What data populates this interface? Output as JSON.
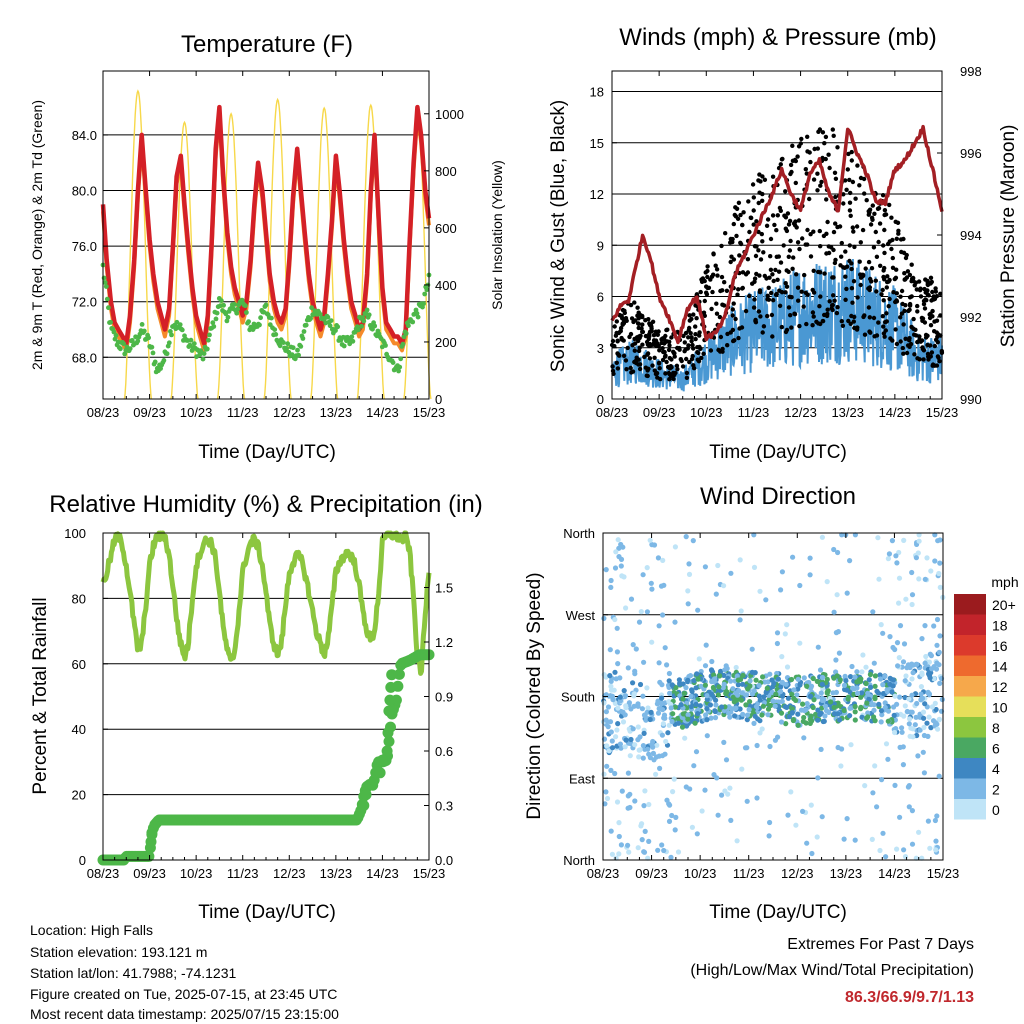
{
  "panels": {
    "temperature": {
      "title": "Temperature (F)",
      "ylabel": "2m & 9m T (Red, Orange) & 2m Td (Green)",
      "ylabel_right": "Solar Insolation (Yellow)",
      "xlabel": "Time (Day/UTC)"
    },
    "winds": {
      "title": "Winds (mph) & Pressure (mb)",
      "ylabel": "Sonic Wind & Gust (Blue, Black)",
      "ylabel_right": "Station Pressure (Maroon)",
      "xlabel": "Time (Day/UTC)"
    },
    "humidity": {
      "title": "Relative Humidity (%) & Precipitation (in)",
      "ylabel": "Percent & Total Rainfall",
      "xlabel": "Time (Day/UTC)"
    },
    "direction": {
      "title": "Wind Direction",
      "ylabel": "Direction (Colored By Speed)",
      "xlabel": "Time (Day/UTC)",
      "legend_title": "mph"
    }
  },
  "info": {
    "location": "Location: High Falls",
    "elevation": "Station elevation: 193.121 m",
    "latlon": "Station lat/lon: 41.7988; -74.1231",
    "created": "Figure created on Tue, 2025-07-15, at 23:45 UTC",
    "recent": "Most recent data timestamp: 2025/07/15 23:15:00"
  },
  "extremes": {
    "title": "Extremes For Past 7 Days",
    "subtitle": "(High/Low/Max Wind/Total Precipitation)",
    "values": "86.3/66.9/9.7/1.13"
  },
  "colors": {
    "temp_2m": "#d42027",
    "temp_9m": "#f58a2a",
    "dewpoint": "#4db748",
    "solar": "#f7d84a",
    "gust": "#000000",
    "wind": "#4a98d3",
    "pressure": "#a31f24",
    "rh": "#8cc63f",
    "precip": "#4db748"
  },
  "chart_data": [
    {
      "type": "line",
      "title": "Temperature (F)",
      "xlabel": "Time (Day/UTC)",
      "ylabel": "2m & 9m T (Red, Orange) & 2m Td (Green)",
      "ylabel_right": "Solar Insolation (Yellow)",
      "x_ticks": [
        "08/23",
        "09/23",
        "10/23",
        "11/23",
        "12/23",
        "13/23",
        "14/23",
        "15/23"
      ],
      "y_ticks": [
        "68.0",
        "72.0",
        "76.0",
        "80.0",
        "84.0"
      ],
      "y_right_ticks": [
        "0",
        "200",
        "400",
        "600",
        "800",
        "1000"
      ],
      "xlim": [
        0,
        7
      ],
      "ylim": [
        65.0,
        88.6
      ],
      "ylim_right": [
        0,
        1150
      ],
      "grid": true,
      "series": [
        {
          "key": "temp_2m",
          "x": [
            0,
            0.08,
            0.17,
            0.25,
            0.33,
            0.42,
            0.5,
            0.58,
            0.67,
            0.75,
            0.83,
            0.92,
            1,
            1.08,
            1.17,
            1.25,
            1.33,
            1.42,
            1.5,
            1.58,
            1.67,
            1.75,
            1.83,
            1.92,
            2,
            2.08,
            2.17,
            2.25,
            2.33,
            2.42,
            2.5,
            2.58,
            2.67,
            2.75,
            2.83,
            2.92,
            3,
            3.08,
            3.17,
            3.25,
            3.33,
            3.42,
            3.5,
            3.58,
            3.67,
            3.75,
            3.83,
            3.92,
            4,
            4.08,
            4.17,
            4.25,
            4.33,
            4.42,
            4.5,
            4.58,
            4.67,
            4.75,
            4.83,
            4.92,
            5,
            5.08,
            5.17,
            5.25,
            5.33,
            5.42,
            5.5,
            5.58,
            5.67,
            5.75,
            5.83,
            5.92,
            6,
            6.08,
            6.17,
            6.25,
            6.33,
            6.42,
            6.5,
            6.58,
            6.67,
            6.75,
            6.83,
            6.92,
            7
          ],
          "y": [
            79.0,
            75.0,
            72.0,
            70.5,
            70.0,
            69.5,
            69.0,
            71.0,
            75.0,
            80.0,
            84.0,
            80.0,
            76.5,
            74.0,
            72.0,
            71.0,
            70.0,
            71.5,
            76.0,
            81.0,
            82.5,
            79.0,
            76.0,
            73.0,
            71.0,
            70.0,
            69.0,
            71.0,
            76.0,
            83.0,
            86.0,
            81.0,
            77.0,
            74.5,
            73.0,
            72.0,
            71.0,
            72.0,
            75.0,
            79.0,
            82.0,
            80.0,
            77.0,
            74.0,
            72.0,
            71.0,
            70.5,
            71.5,
            75.0,
            79.5,
            83.0,
            80.0,
            77.0,
            74.0,
            72.0,
            71.0,
            70.0,
            71.0,
            74.0,
            78.0,
            82.5,
            80.0,
            76.5,
            74.0,
            72.0,
            71.0,
            70.0,
            70.5,
            74.0,
            80.0,
            84.0,
            78.0,
            73.0,
            70.5,
            70.0,
            69.5,
            69.5,
            69.0,
            70.0,
            76.0,
            82.0,
            86.0,
            84.0,
            80.0,
            78.0
          ]
        },
        {
          "key": "dewpoint",
          "x": [
            0,
            0.17,
            0.33,
            0.5,
            0.67,
            0.83,
            1,
            1.17,
            1.33,
            1.5,
            1.67,
            1.83,
            2,
            2.17,
            2.33,
            2.5,
            2.67,
            2.83,
            3,
            3.17,
            3.33,
            3.5,
            3.67,
            3.83,
            4,
            4.17,
            4.33,
            4.5,
            4.67,
            4.83,
            5,
            5.17,
            5.33,
            5.5,
            5.67,
            5.83,
            6,
            6.17,
            6.33,
            6.5,
            6.67,
            6.83,
            7
          ],
          "y": [
            74.5,
            70.0,
            69.0,
            68.5,
            69.0,
            70.0,
            69.0,
            67.0,
            68.0,
            70.5,
            70.0,
            69.0,
            68.5,
            68.0,
            70.0,
            72.0,
            71.0,
            71.5,
            72.0,
            70.0,
            70.5,
            71.5,
            70.0,
            69.0,
            68.5,
            68.0,
            70.0,
            71.5,
            71.0,
            70.5,
            70.0,
            69.0,
            69.0,
            70.5,
            71.0,
            70.0,
            69.0,
            68.0,
            67.0,
            70.0,
            71.0,
            71.5,
            73.5
          ]
        },
        {
          "key": "solar",
          "noon_peaks": [
            1080,
            970,
            1000,
            1050,
            1020,
            1030,
            1010
          ],
          "noon_x": [
            0.75,
            1.75,
            2.75,
            3.75,
            4.75,
            5.75,
            6.75
          ]
        }
      ]
    },
    {
      "type": "scatter",
      "title": "Winds (mph) & Pressure (mb)",
      "xlabel": "Time (Day/UTC)",
      "ylabel": "Sonic Wind & Gust (Blue, Black)",
      "ylabel_right": "Station Pressure (Maroon)",
      "x_ticks": [
        "08/23",
        "09/23",
        "10/23",
        "11/23",
        "12/23",
        "13/23",
        "14/23",
        "15/23"
      ],
      "y_ticks": [
        "0",
        "3",
        "6",
        "9",
        "12",
        "15",
        "18"
      ],
      "y_right_ticks": [
        "990",
        "992",
        "994",
        "996",
        "998"
      ],
      "xlim": [
        0,
        7
      ],
      "ylim": [
        0,
        19.2
      ],
      "ylim_right": [
        990,
        998
      ],
      "grid": true,
      "series": [
        {
          "key": "wind_env",
          "x": [
            0,
            0.5,
            1,
            1.5,
            2,
            2.5,
            3,
            3.5,
            4,
            4.5,
            5,
            5.5,
            6,
            6.5,
            7
          ],
          "y": [
            1.8,
            2.4,
            1.6,
            1.2,
            2.5,
            3.6,
            4.3,
            4.6,
            5.4,
            5.6,
            5.8,
            5.2,
            4.4,
            2.6,
            2.5
          ]
        },
        {
          "key": "gust_env",
          "x": [
            0,
            0.5,
            1,
            1.5,
            2,
            2.5,
            3,
            3.5,
            4,
            4.5,
            5,
            5.5,
            6,
            6.5,
            7
          ],
          "y": [
            4.0,
            4.5,
            3.2,
            3.0,
            6.0,
            8.5,
            10.0,
            10.5,
            12.0,
            12.5,
            11.5,
            10.0,
            8.5,
            5.5,
            5.5
          ]
        },
        {
          "key": "pressure",
          "x": [
            0,
            0.2,
            0.35,
            0.5,
            0.65,
            0.8,
            1,
            1.2,
            1.4,
            1.6,
            1.8,
            2,
            2.2,
            2.4,
            2.6,
            2.8,
            3,
            3.2,
            3.4,
            3.6,
            3.8,
            4,
            4.2,
            4.4,
            4.6,
            4.8,
            5,
            5.2,
            5.4,
            5.6,
            5.8,
            6,
            6.2,
            6.4,
            6.6,
            6.8,
            7
          ],
          "y": [
            991.9,
            992.3,
            992.4,
            993.2,
            994.0,
            993.5,
            992.5,
            992.0,
            991.4,
            992.2,
            992.5,
            991.5,
            991.6,
            992.0,
            993.0,
            993.5,
            994.0,
            994.5,
            995.0,
            995.6,
            995.0,
            994.6,
            995.5,
            995.8,
            995.0,
            994.6,
            996.6,
            996.0,
            995.5,
            994.8,
            994.8,
            995.6,
            995.8,
            996.2,
            996.6,
            995.6,
            994.6
          ]
        }
      ]
    },
    {
      "type": "line",
      "title": "Relative Humidity (%) & Precipitation (in)",
      "xlabel": "Time (Day/UTC)",
      "ylabel": "Percent & Total Rainfall",
      "x_ticks": [
        "08/23",
        "09/23",
        "10/23",
        "11/23",
        "12/23",
        "13/23",
        "14/23",
        "15/23"
      ],
      "y_ticks": [
        "0",
        "20",
        "40",
        "60",
        "80",
        "100"
      ],
      "y_right_ticks": [
        "0.0",
        "0.3",
        "0.6",
        "0.9",
        "1.2",
        "1.5"
      ],
      "xlim": [
        0,
        7
      ],
      "ylim": [
        0,
        100
      ],
      "ylim_right": [
        0,
        1.8
      ],
      "grid": true,
      "series": [
        {
          "key": "rh",
          "x": [
            0,
            0.08,
            0.17,
            0.25,
            0.33,
            0.42,
            0.5,
            0.58,
            0.67,
            0.75,
            0.83,
            0.92,
            1,
            1.08,
            1.17,
            1.25,
            1.33,
            1.42,
            1.5,
            1.58,
            1.67,
            1.75,
            1.83,
            1.92,
            2,
            2.08,
            2.17,
            2.25,
            2.33,
            2.42,
            2.5,
            2.58,
            2.67,
            2.75,
            2.83,
            2.92,
            3,
            3.08,
            3.17,
            3.25,
            3.33,
            3.42,
            3.5,
            3.58,
            3.67,
            3.75,
            3.83,
            3.92,
            4,
            4.08,
            4.17,
            4.25,
            4.33,
            4.42,
            4.5,
            4.58,
            4.67,
            4.75,
            4.83,
            4.92,
            5,
            5.08,
            5.17,
            5.25,
            5.33,
            5.42,
            5.5,
            5.58,
            5.67,
            5.75,
            5.83,
            5.92,
            6,
            6.08,
            6.17,
            6.25,
            6.33,
            6.42,
            6.5,
            6.58,
            6.67,
            6.75,
            6.83,
            6.92,
            7
          ],
          "y": [
            84,
            88,
            93,
            98,
            99,
            96,
            90,
            82,
            72,
            64,
            66,
            78,
            90,
            96,
            99,
            99,
            99,
            93,
            84,
            74,
            66,
            62,
            66,
            80,
            90,
            94,
            97,
            98,
            97,
            92,
            82,
            71,
            64,
            60,
            64,
            76,
            88,
            93,
            97,
            98,
            96,
            90,
            82,
            72,
            66,
            63,
            66,
            78,
            88,
            91,
            93,
            92,
            88,
            82,
            76,
            70,
            66,
            63,
            67,
            78,
            88,
            91,
            93,
            94,
            93,
            90,
            84,
            76,
            70,
            67,
            70,
            82,
            97,
            99,
            100,
            99,
            99,
            98,
            99,
            95,
            80,
            62,
            57,
            75,
            89
          ]
        },
        {
          "key": "precip",
          "x": [
            0,
            0.25,
            0.45,
            0.5,
            0.8,
            1.0,
            1.05,
            1.1,
            1.2,
            1.4,
            2,
            3,
            4,
            5,
            5.45,
            5.55,
            5.6,
            5.65,
            5.7,
            5.75,
            5.8,
            5.9,
            6.0,
            6.1,
            6.2,
            6.3,
            6.35,
            6.4,
            6.5,
            6.6,
            6.8,
            7
          ],
          "y": [
            0,
            0,
            0,
            0.02,
            0.02,
            0.02,
            0.15,
            0.19,
            0.22,
            0.22,
            0.22,
            0.22,
            0.22,
            0.22,
            0.22,
            0.28,
            0.35,
            0.4,
            0.41,
            0.42,
            0.41,
            0.54,
            0.54,
            0.55,
            0.8,
            0.88,
            1.0,
            1.08,
            1.09,
            1.1,
            1.13,
            1.13
          ]
        }
      ]
    },
    {
      "type": "scatter",
      "title": "Wind Direction",
      "xlabel": "Time (Day/UTC)",
      "ylabel": "Direction (Colored By Speed)",
      "x_ticks": [
        "08/23",
        "09/23",
        "10/23",
        "11/23",
        "12/23",
        "13/23",
        "14/23",
        "15/23"
      ],
      "y_ticks": [
        "North",
        "East",
        "South",
        "West",
        "North"
      ],
      "xlim": [
        0,
        7
      ],
      "ylim": [
        0,
        360
      ],
      "grid": true,
      "legend": {
        "title": "mph",
        "labels": [
          "20+",
          "18",
          "16",
          "14",
          "12",
          "10",
          "8",
          "6",
          "4",
          "2",
          "0"
        ],
        "colors": [
          "#9b1b1e",
          "#c2242b",
          "#dc3a2c",
          "#ee6a2e",
          "#f6a84b",
          "#e6df5a",
          "#8cc63f",
          "#4aa862",
          "#3e87c2",
          "#7db8e6",
          "#bfe4f7"
        ]
      },
      "series": [
        {
          "key": "direction_mean",
          "x": [
            0,
            0.5,
            1,
            1.5,
            2,
            2.5,
            3,
            3.5,
            4,
            4.5,
            5,
            5.5,
            6,
            6.5,
            7
          ],
          "y": [
            160,
            170,
            150,
            170,
            180,
            185,
            180,
            180,
            175,
            180,
            180,
            180,
            175,
            180,
            185
          ]
        }
      ]
    }
  ]
}
